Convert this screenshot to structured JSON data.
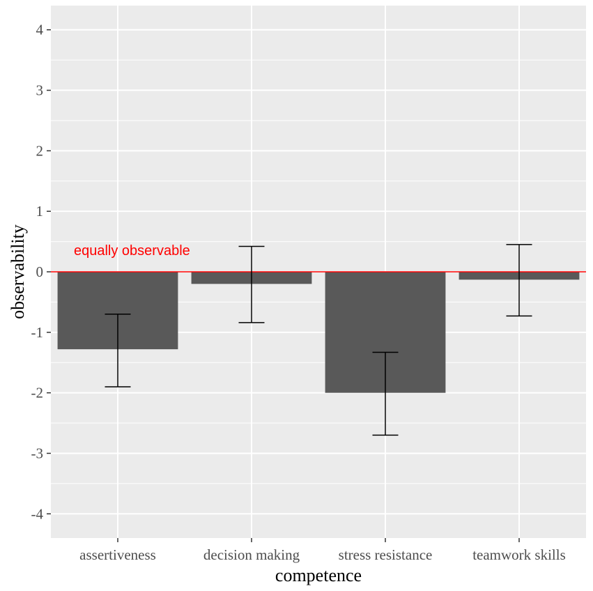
{
  "chart_data": {
    "type": "bar",
    "xlabel": "competence",
    "ylabel": "observability",
    "categories": [
      "assertiveness",
      "decision making",
      "stress resistance",
      "teamwork skills"
    ],
    "values": [
      -1.28,
      -0.2,
      -2.0,
      -0.13
    ],
    "error_low": [
      -1.9,
      -0.84,
      -2.7,
      -0.73
    ],
    "error_high": [
      -0.7,
      0.42,
      -1.33,
      0.45
    ],
    "ylim": [
      -4.4,
      4.4
    ],
    "yticks": [
      -4,
      -3,
      -2,
      -1,
      0,
      1,
      2,
      3,
      4
    ],
    "reference_line": {
      "y": 0,
      "label": "equally observable",
      "color": "#ff0000"
    },
    "grid": true,
    "colors": {
      "panel": "#ebebeb",
      "grid": "#ffffff",
      "bar": "#595959",
      "errorbar": "#000000"
    }
  }
}
